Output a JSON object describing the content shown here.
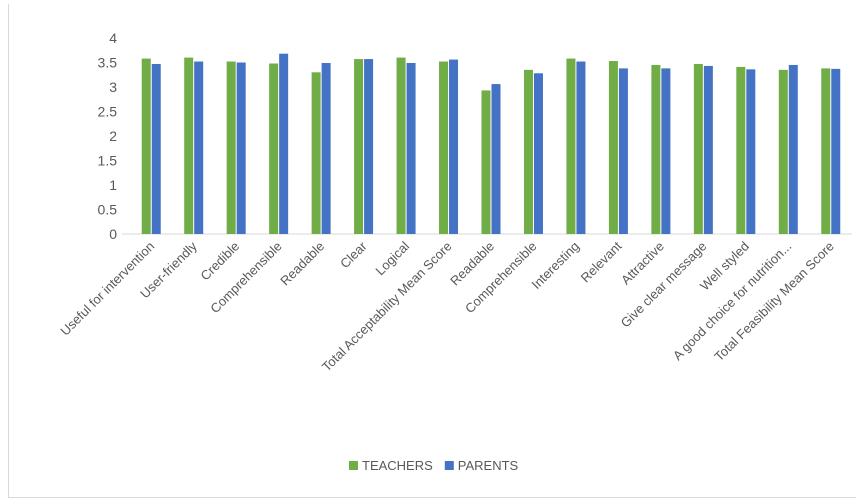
{
  "chart_data": {
    "type": "bar",
    "title": "",
    "xlabel": "",
    "ylabel": "",
    "ylim": [
      0,
      4
    ],
    "yticks": [
      "0",
      "0.5",
      "1",
      "1.5",
      "2",
      "2.5",
      "3",
      "3.5",
      "4"
    ],
    "grid": false,
    "legend_position": "bottom",
    "categories": [
      "Useful for intervention",
      "User-friendly",
      "Credible",
      "Comprehensible",
      "Readable",
      "Clear",
      "Logical",
      "Total Acceptability Mean Score",
      "Readable",
      "Comprehensible",
      "Interesting",
      "Relevant",
      "Attractive",
      "Give clear message",
      "Well styled",
      "A good choice for nutrition...",
      "Total Feasibility Mean Score"
    ],
    "series": [
      {
        "name": "TEACHERS",
        "color": "#70ad47",
        "values": [
          3.58,
          3.6,
          3.52,
          3.48,
          3.3,
          3.57,
          3.6,
          3.52,
          2.93,
          3.35,
          3.58,
          3.53,
          3.45,
          3.47,
          3.41,
          3.35,
          3.38
        ]
      },
      {
        "name": "PARENTS",
        "color": "#4472c4",
        "values": [
          3.47,
          3.52,
          3.5,
          3.68,
          3.49,
          3.57,
          3.49,
          3.56,
          3.06,
          3.28,
          3.52,
          3.38,
          3.38,
          3.43,
          3.36,
          3.45,
          3.37
        ]
      }
    ]
  }
}
